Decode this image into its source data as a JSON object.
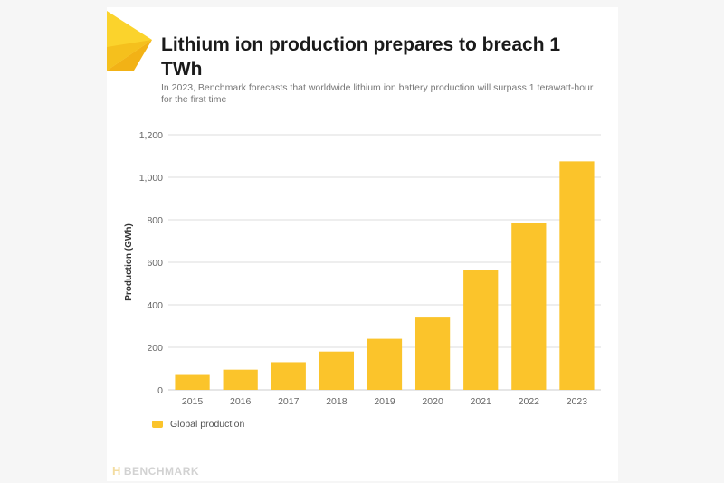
{
  "header": {
    "title": "Lithium ion production prepares to breach 1 TWh",
    "subtitle": "In 2023, Benchmark forecasts that worldwide lithium ion battery production will surpass 1 terawatt-hour for the first time"
  },
  "legend": {
    "label": "Global production"
  },
  "brand": {
    "name": "BENCHMARK",
    "mark": "H"
  },
  "colors": {
    "bar": "#FBC42B",
    "logo_light": "#FBD32C",
    "logo_dark": "#F2B216",
    "grid": "#dddddd",
    "axis_text": "#666666"
  },
  "chart_data": {
    "type": "bar",
    "categories": [
      "2015",
      "2016",
      "2017",
      "2018",
      "2019",
      "2020",
      "2021",
      "2022",
      "2023"
    ],
    "series": [
      {
        "name": "Global production",
        "values": [
          70,
          95,
          130,
          180,
          240,
          340,
          565,
          785,
          1075
        ]
      }
    ],
    "ylabel": "Production (GWh)",
    "xlabel": "",
    "ylim": [
      0,
      1200
    ],
    "yticks": [
      0,
      200,
      400,
      600,
      800,
      1000,
      1200
    ],
    "ytick_labels": [
      "0",
      "200",
      "400",
      "600",
      "800",
      "1,000",
      "1,200"
    ],
    "grid": true,
    "legend_position": "bottom-left"
  }
}
